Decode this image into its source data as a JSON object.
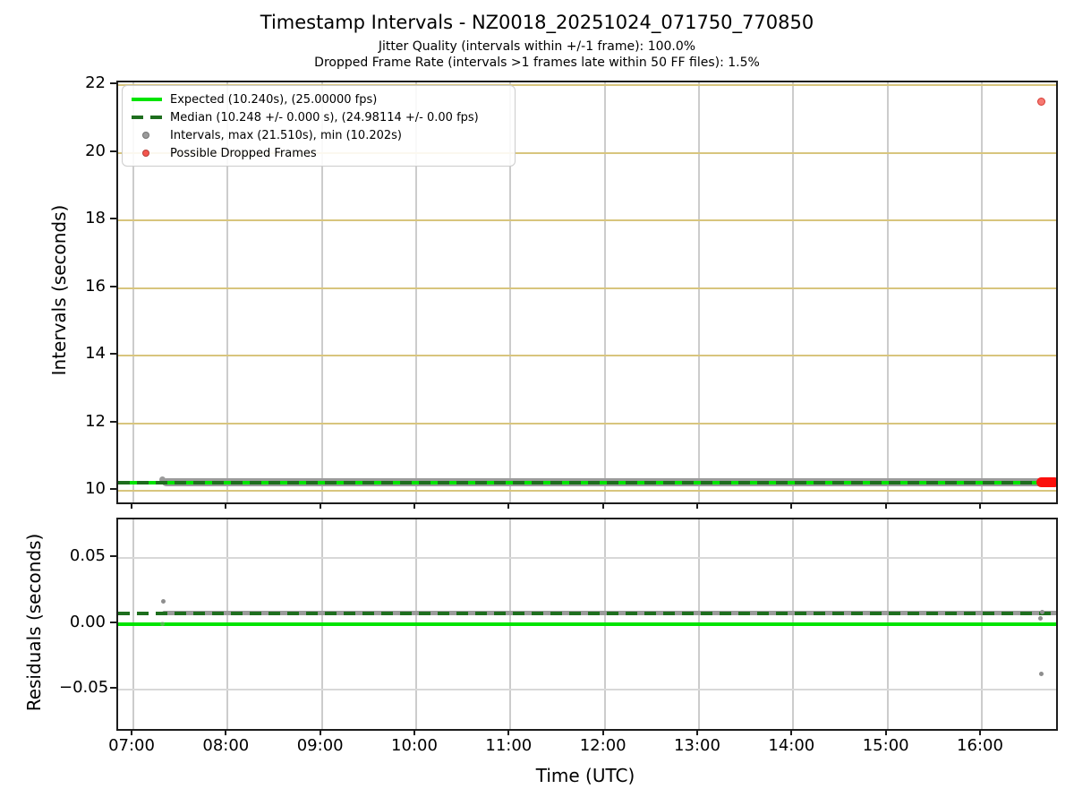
{
  "figure": {
    "title": "Timestamp Intervals - NZ0018_20251024_071750_770850",
    "subtitle1": "Jitter Quality (intervals within +/-1 frame): 100.0%",
    "subtitle2": "Dropped Frame Rate (intervals >1 frames late within 50 FF files): 1.5%"
  },
  "colors": {
    "expected": "#00e400",
    "median": "#1e6e1e",
    "intervals": "#9b9b9b",
    "intervals_faint": "rgba(155,155,155,0.5)",
    "dropped": "#f4564e",
    "dropped_edge": "#d63a33",
    "dropped_cluster": "#fb100d",
    "grid_h_top": "#d8c57d",
    "grid_v": "#cccccc",
    "grid_h_bottom": "#d8d8d8",
    "axis": "#1c1c1c"
  },
  "legend": {
    "items": [
      {
        "marker": "line-solid",
        "color": "#00e400",
        "label": "Expected (10.240s), (25.00000 fps)"
      },
      {
        "marker": "line-dashed",
        "color": "#1e6e1e",
        "label": "Median (10.248 +/- 0.000 s), (24.98114 +/- 0.00 fps)"
      },
      {
        "marker": "dot",
        "color": "#9b9b9b",
        "label": "Intervals, max (21.510s), min (10.202s)"
      },
      {
        "marker": "dot",
        "color": "#f4564e",
        "label": "Possible Dropped Frames"
      }
    ]
  },
  "x_axis": {
    "label": "Time (UTC)",
    "ticks": [
      {
        "hour": 7,
        "label": "07:00"
      },
      {
        "hour": 8,
        "label": "08:00"
      },
      {
        "hour": 9,
        "label": "09:00"
      },
      {
        "hour": 10,
        "label": "10:00"
      },
      {
        "hour": 11,
        "label": "11:00"
      },
      {
        "hour": 12,
        "label": "12:00"
      },
      {
        "hour": 13,
        "label": "13:00"
      },
      {
        "hour": 14,
        "label": "14:00"
      },
      {
        "hour": 15,
        "label": "15:00"
      },
      {
        "hour": 16,
        "label": "16:00"
      }
    ]
  },
  "chart_data": [
    {
      "id": "intervals-plot",
      "type": "scatter",
      "ylabel": "Intervals (seconds)",
      "ylim": [
        9.66,
        22.08
      ],
      "xlim_hours": [
        6.84,
        16.79
      ],
      "grid": true,
      "yticks": [
        {
          "v": 22,
          "label": "22"
        },
        {
          "v": 20,
          "label": "20"
        },
        {
          "v": 18,
          "label": "18"
        },
        {
          "v": 16,
          "label": "16"
        },
        {
          "v": 14,
          "label": "14"
        },
        {
          "v": 12,
          "label": "12"
        },
        {
          "v": 10,
          "label": "10"
        }
      ],
      "expected_line": {
        "value_s": 10.24,
        "fps": 25.0
      },
      "median_line": {
        "value_s": 10.248,
        "fps": 24.98114
      },
      "intervals_series": {
        "x_start_hour": 7.3,
        "x_end_hour": 16.82,
        "y_s": 10.248,
        "max_s": 21.51,
        "min_s": 10.202
      },
      "dropped_frames": {
        "cluster": {
          "x_start_hour": 16.58,
          "x_end_hour": 16.83,
          "y_s": 10.24
        },
        "points": [
          {
            "x_hour": 16.63,
            "y_s": 21.51
          }
        ]
      }
    },
    {
      "id": "residuals-plot",
      "type": "scatter",
      "ylabel": "Residuals (seconds)",
      "ylim": [
        -0.08,
        0.079
      ],
      "grid": true,
      "yticks": [
        {
          "v": 0.05,
          "label": "0.05"
        },
        {
          "v": 0.0,
          "label": "0.00"
        },
        {
          "v": -0.05,
          "label": "−0.05"
        }
      ],
      "expected_line": {
        "value_s": 0.0
      },
      "median_line": {
        "value_s": 0.008
      },
      "residual_band": {
        "x_start_hour": 7.3,
        "x_end_hour": 16.82,
        "y_s": 0.008
      },
      "outlier_points": [
        {
          "x_hour": 7.32,
          "y_s": 0.017,
          "faint": false
        },
        {
          "x_hour": 7.31,
          "y_s": 0.0,
          "faint": true
        },
        {
          "x_hour": 16.64,
          "y_s": 0.009,
          "faint": false
        },
        {
          "x_hour": 16.62,
          "y_s": 0.004,
          "faint": false
        },
        {
          "x_hour": 16.63,
          "y_s": -0.038,
          "faint": false
        }
      ]
    }
  ]
}
